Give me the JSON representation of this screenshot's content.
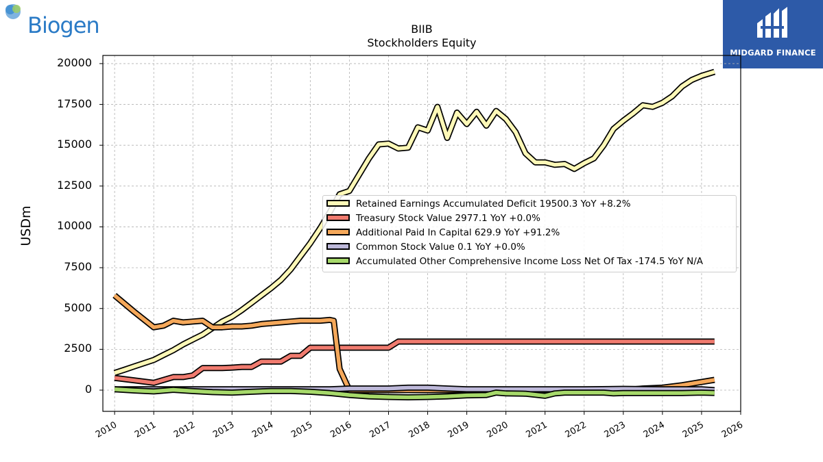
{
  "header": {
    "left_logo_text": "Biogen",
    "right_logo_caption": "MIDGARD FINANCE",
    "colors": {
      "biogen_blue": "#2b7bc6",
      "midgard_bg": "#2d5aa8"
    }
  },
  "chart_data": {
    "type": "line",
    "title": "BIIB",
    "subtitle": "Stockholders  Equity",
    "xlabel": "",
    "ylabel": "USDm",
    "xlim": [
      2009.7,
      2026.0
    ],
    "ylim": [
      -1300,
      20500
    ],
    "x_ticks": [
      "2010",
      "2011",
      "2012",
      "2013",
      "2014",
      "2015",
      "2016",
      "2017",
      "2018",
      "2019",
      "2020",
      "2021",
      "2022",
      "2023",
      "2024",
      "2025",
      "2026"
    ],
    "y_ticks": [
      "0",
      "2500",
      "5000",
      "7500",
      "10000",
      "12500",
      "15000",
      "17500",
      "20000"
    ],
    "y_tick_values": [
      0,
      2500,
      5000,
      7500,
      10000,
      12500,
      15000,
      17500,
      20000
    ],
    "grid": true,
    "legend_position": "center-right",
    "series": [
      {
        "name": "Retained Earnings Accumulated Deficit",
        "legend": "Retained Earnings Accumulated Deficit  19500.3 YoY +8.2%",
        "color": "#fdf8b7",
        "points": [
          [
            2010.0,
            1050
          ],
          [
            2010.25,
            1250
          ],
          [
            2010.5,
            1450
          ],
          [
            2010.75,
            1650
          ],
          [
            2011.0,
            1850
          ],
          [
            2011.25,
            2150
          ],
          [
            2011.5,
            2450
          ],
          [
            2011.75,
            2800
          ],
          [
            2012.0,
            3100
          ],
          [
            2012.25,
            3400
          ],
          [
            2012.5,
            3800
          ],
          [
            2012.75,
            4200
          ],
          [
            2013.0,
            4500
          ],
          [
            2013.25,
            4900
          ],
          [
            2013.5,
            5350
          ],
          [
            2013.75,
            5800
          ],
          [
            2014.0,
            6250
          ],
          [
            2014.25,
            6750
          ],
          [
            2014.5,
            7400
          ],
          [
            2014.75,
            8200
          ],
          [
            2015.0,
            9000
          ],
          [
            2015.25,
            9900
          ],
          [
            2015.5,
            10900
          ],
          [
            2015.75,
            12000
          ],
          [
            2016.0,
            12200
          ],
          [
            2016.25,
            13200
          ],
          [
            2016.5,
            14200
          ],
          [
            2016.75,
            15050
          ],
          [
            2017.0,
            15100
          ],
          [
            2017.25,
            14800
          ],
          [
            2017.5,
            14850
          ],
          [
            2017.75,
            16100
          ],
          [
            2018.0,
            15900
          ],
          [
            2018.25,
            17350
          ],
          [
            2018.5,
            15450
          ],
          [
            2018.75,
            17000
          ],
          [
            2019.0,
            16300
          ],
          [
            2019.25,
            17050
          ],
          [
            2019.5,
            16200
          ],
          [
            2019.75,
            17100
          ],
          [
            2020.0,
            16600
          ],
          [
            2020.25,
            15800
          ],
          [
            2020.5,
            14500
          ],
          [
            2020.75,
            13950
          ],
          [
            2021.0,
            13950
          ],
          [
            2021.25,
            13800
          ],
          [
            2021.5,
            13850
          ],
          [
            2021.75,
            13550
          ],
          [
            2022.0,
            13900
          ],
          [
            2022.25,
            14200
          ],
          [
            2022.5,
            15000
          ],
          [
            2022.75,
            16000
          ],
          [
            2023.0,
            16500
          ],
          [
            2023.25,
            16950
          ],
          [
            2023.5,
            17450
          ],
          [
            2023.75,
            17350
          ],
          [
            2024.0,
            17600
          ],
          [
            2024.25,
            18000
          ],
          [
            2024.5,
            18600
          ],
          [
            2024.75,
            19000
          ],
          [
            2025.0,
            19250
          ],
          [
            2025.33,
            19500
          ]
        ]
      },
      {
        "name": "Treasury Stock Value",
        "legend": "Treasury Stock Value  2977.1 YoY +0.0%",
        "color": "#f07b6f",
        "points": [
          [
            2010.0,
            750
          ],
          [
            2010.5,
            600
          ],
          [
            2011.0,
            450
          ],
          [
            2011.5,
            800
          ],
          [
            2011.75,
            800
          ],
          [
            2012.0,
            900
          ],
          [
            2012.25,
            1350
          ],
          [
            2012.5,
            1350
          ],
          [
            2012.75,
            1350
          ],
          [
            2013.0,
            1380
          ],
          [
            2013.25,
            1420
          ],
          [
            2013.5,
            1420
          ],
          [
            2013.75,
            1750
          ],
          [
            2014.0,
            1750
          ],
          [
            2014.25,
            1750
          ],
          [
            2014.5,
            2100
          ],
          [
            2014.75,
            2100
          ],
          [
            2015.0,
            2600
          ],
          [
            2015.25,
            2600
          ],
          [
            2015.5,
            2600
          ],
          [
            2015.75,
            2600
          ],
          [
            2016.0,
            2600
          ],
          [
            2017.0,
            2600
          ],
          [
            2017.25,
            2977
          ],
          [
            2025.33,
            2977
          ]
        ]
      },
      {
        "name": "Additional Paid In Capital",
        "legend": "Additional Paid In Capital  629.9 YoY +91.2%",
        "color": "#f5a85a",
        "points": [
          [
            2010.0,
            5800
          ],
          [
            2010.5,
            4800
          ],
          [
            2011.0,
            3850
          ],
          [
            2011.25,
            3950
          ],
          [
            2011.5,
            4250
          ],
          [
            2011.75,
            4150
          ],
          [
            2012.0,
            4200
          ],
          [
            2012.25,
            4250
          ],
          [
            2012.5,
            3850
          ],
          [
            2012.75,
            3850
          ],
          [
            2013.0,
            3900
          ],
          [
            2013.25,
            3900
          ],
          [
            2013.5,
            3950
          ],
          [
            2013.75,
            4050
          ],
          [
            2014.0,
            4100
          ],
          [
            2014.25,
            4150
          ],
          [
            2014.5,
            4200
          ],
          [
            2014.75,
            4250
          ],
          [
            2015.0,
            4250
          ],
          [
            2015.25,
            4250
          ],
          [
            2015.5,
            4300
          ],
          [
            2015.6,
            4250
          ],
          [
            2015.75,
            1300
          ],
          [
            2016.0,
            0
          ],
          [
            2016.5,
            0
          ],
          [
            2017.0,
            0
          ],
          [
            2017.5,
            0
          ],
          [
            2018.0,
            0
          ],
          [
            2019.0,
            0
          ],
          [
            2020.0,
            0
          ],
          [
            2021.0,
            0
          ],
          [
            2022.0,
            0
          ],
          [
            2023.0,
            0
          ],
          [
            2023.5,
            100
          ],
          [
            2024.0,
            150
          ],
          [
            2024.5,
            300
          ],
          [
            2025.0,
            500
          ],
          [
            2025.33,
            630
          ]
        ]
      },
      {
        "name": "Common Stock Value",
        "legend": "Common Stock Value  0.1 YoY +0.0%",
        "color": "#bdb8d9",
        "points": [
          [
            2010.0,
            50
          ],
          [
            2012.0,
            50
          ],
          [
            2014.0,
            50
          ],
          [
            2015.5,
            50
          ],
          [
            2016.0,
            100
          ],
          [
            2016.5,
            100
          ],
          [
            2017.0,
            100
          ],
          [
            2017.5,
            150
          ],
          [
            2018.0,
            150
          ],
          [
            2018.5,
            100
          ],
          [
            2019.0,
            50
          ],
          [
            2020.0,
            50
          ],
          [
            2021.0,
            50
          ],
          [
            2022.0,
            50
          ],
          [
            2023.0,
            80
          ],
          [
            2024.0,
            50
          ],
          [
            2025.0,
            50
          ],
          [
            2025.33,
            0
          ]
        ]
      },
      {
        "name": "Accumulated Other Comprehensive Income Loss Net Of Tax",
        "legend": "Accumulated Other Comprehensive Income Loss Net Of Tax  -174.5 YoY N/A",
        "color": "#a6d96a",
        "points": [
          [
            2010.0,
            50
          ],
          [
            2010.5,
            -20
          ],
          [
            2011.0,
            -80
          ],
          [
            2011.5,
            20
          ],
          [
            2012.0,
            -60
          ],
          [
            2012.5,
            -120
          ],
          [
            2013.0,
            -150
          ],
          [
            2013.5,
            -100
          ],
          [
            2014.0,
            -50
          ],
          [
            2014.5,
            -50
          ],
          [
            2015.0,
            -100
          ],
          [
            2015.5,
            -180
          ],
          [
            2016.0,
            -300
          ],
          [
            2016.5,
            -380
          ],
          [
            2017.0,
            -420
          ],
          [
            2017.5,
            -440
          ],
          [
            2018.0,
            -420
          ],
          [
            2018.5,
            -380
          ],
          [
            2019.0,
            -320
          ],
          [
            2019.5,
            -300
          ],
          [
            2019.75,
            -150
          ],
          [
            2020.0,
            -200
          ],
          [
            2020.5,
            -220
          ],
          [
            2021.0,
            -350
          ],
          [
            2021.25,
            -200
          ],
          [
            2021.5,
            -150
          ],
          [
            2022.0,
            -150
          ],
          [
            2022.5,
            -150
          ],
          [
            2022.75,
            -200
          ],
          [
            2023.0,
            -180
          ],
          [
            2023.5,
            -180
          ],
          [
            2024.0,
            -180
          ],
          [
            2024.5,
            -180
          ],
          [
            2025.0,
            -150
          ],
          [
            2025.33,
            -174
          ]
        ]
      }
    ]
  }
}
